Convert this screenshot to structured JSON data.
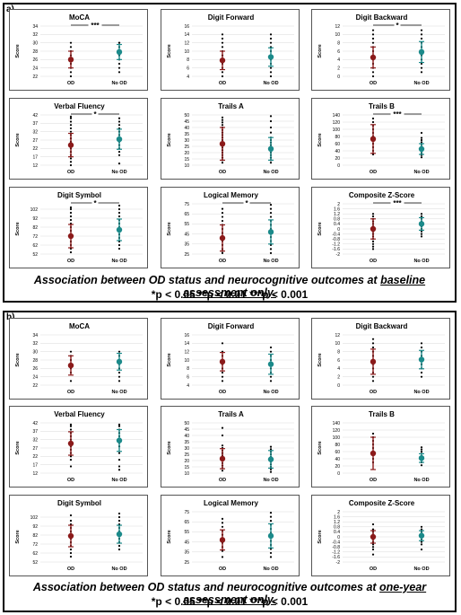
{
  "colors": {
    "od": "#8B1A1A",
    "no_od": "#1B8A8A",
    "dots": "#000000",
    "grid": "#d9d9d9"
  },
  "figure": {
    "sig_legend": "*p < 0.05    **p < 0.01    ***p < 0.001",
    "sections": [
      {
        "label": "a)",
        "caption_prefix": "Association between OD status and neurocognitive outcomes at ",
        "caption_underlined": "baseline assessment only.",
        "sig_text": "*p < 0.05    **p < 0.01    ***p < 0.001"
      },
      {
        "label": "b)",
        "caption_prefix": "Association between OD status and neurocognitive outcomes at ",
        "caption_underlined": "one-year assessment only.",
        "sig_text": "*p < 0.05    **p < 0.01    ***p < 0.001"
      }
    ]
  },
  "chart_data": [
    {
      "type": "scatter",
      "section": "a",
      "title": "MoCA",
      "ylabel": "Score",
      "categories": [
        "OD",
        "No OD"
      ],
      "yticks": [
        22,
        24,
        26,
        28,
        30,
        32,
        34
      ],
      "ylim": [
        22,
        34
      ],
      "sig": "***",
      "series": [
        {
          "mean": 26.0,
          "sd": 2.0,
          "points": [
            22,
            23,
            24,
            25,
            26,
            26,
            27,
            28,
            29,
            30
          ]
        },
        {
          "mean": 27.8,
          "sd": 1.8,
          "points": [
            23,
            24,
            25,
            26,
            27,
            28,
            28,
            29,
            30,
            30
          ]
        }
      ]
    },
    {
      "type": "scatter",
      "section": "a",
      "title": "Digit Forward",
      "ylabel": "Score",
      "categories": [
        "OD",
        "No OD"
      ],
      "yticks": [
        4,
        6,
        8,
        10,
        12,
        14,
        16
      ],
      "ylim": [
        4,
        16
      ],
      "sig": "",
      "series": [
        {
          "mean": 7.8,
          "sd": 2.2,
          "points": [
            4,
            5,
            6,
            7,
            8,
            9,
            10,
            11,
            12,
            13,
            14
          ]
        },
        {
          "mean": 8.6,
          "sd": 2.2,
          "points": [
            4,
            5,
            6,
            7,
            8,
            9,
            10,
            11,
            12,
            13,
            14
          ]
        }
      ]
    },
    {
      "type": "scatter",
      "section": "a",
      "title": "Digit Backward",
      "ylabel": "Score",
      "categories": [
        "OD",
        "No OD"
      ],
      "yticks": [
        0,
        2,
        4,
        6,
        8,
        10,
        12
      ],
      "ylim": [
        0,
        12
      ],
      "sig": "*",
      "series": [
        {
          "mean": 4.5,
          "sd": 2.5,
          "points": [
            0,
            1,
            2,
            3,
            4,
            5,
            6,
            7,
            8,
            9,
            10,
            11
          ]
        },
        {
          "mean": 5.8,
          "sd": 2.5,
          "points": [
            1,
            2,
            3,
            4,
            5,
            6,
            7,
            8,
            9,
            10,
            11
          ]
        }
      ]
    },
    {
      "type": "scatter",
      "section": "a",
      "title": "Verbal Fluency",
      "ylabel": "Score",
      "categories": [
        "OD",
        "No OD"
      ],
      "yticks": [
        12,
        17,
        22,
        27,
        32,
        37,
        42
      ],
      "ylim": [
        12,
        42
      ],
      "sig": "*",
      "series": [
        {
          "mean": 24.0,
          "sd": 7.0,
          "points": [
            12,
            14,
            16,
            18,
            20,
            22,
            24,
            26,
            28,
            30,
            32,
            34,
            36,
            38,
            40,
            41
          ]
        },
        {
          "mean": 27.5,
          "sd": 6.0,
          "points": [
            13,
            18,
            20,
            22,
            24,
            26,
            28,
            30,
            32,
            34,
            36,
            38,
            40
          ]
        }
      ]
    },
    {
      "type": "scatter",
      "section": "a",
      "title": "Trails A",
      "ylabel": "Score",
      "categories": [
        "OD",
        "No OD"
      ],
      "yticks": [
        10,
        15,
        20,
        25,
        30,
        35,
        40,
        45,
        50
      ],
      "ylim": [
        10,
        50
      ],
      "sig": "",
      "series": [
        {
          "mean": 27.0,
          "sd": 13.0,
          "points": [
            12,
            14,
            16,
            18,
            20,
            22,
            24,
            26,
            28,
            30,
            32,
            34,
            36,
            38,
            40,
            42,
            44,
            46,
            48
          ]
        },
        {
          "mean": 23.0,
          "sd": 9.0,
          "points": [
            12,
            14,
            16,
            18,
            20,
            22,
            24,
            26,
            28,
            30,
            32,
            36,
            40,
            45,
            49
          ]
        }
      ]
    },
    {
      "type": "scatter",
      "section": "a",
      "title": "Trails B",
      "ylabel": "Score",
      "categories": [
        "OD",
        "No OD"
      ],
      "yticks": [
        0,
        20,
        40,
        60,
        80,
        100,
        120,
        140
      ],
      "ylim": [
        0,
        140
      ],
      "sig": "***",
      "series": [
        {
          "mean": 73.0,
          "sd": 40.0,
          "points": [
            30,
            40,
            50,
            60,
            70,
            80,
            90,
            100,
            110,
            120,
            130
          ]
        },
        {
          "mean": 45.0,
          "sd": 15.0,
          "points": [
            22,
            28,
            34,
            40,
            46,
            52,
            58,
            64,
            70,
            76,
            90
          ]
        }
      ]
    },
    {
      "type": "scatter",
      "section": "a",
      "title": "Digit Symbol",
      "ylabel": "Score",
      "categories": [
        "OD",
        "No OD"
      ],
      "yticks": [
        52,
        62,
        72,
        82,
        92,
        102
      ],
      "ylim": [
        52,
        108
      ],
      "sig": "*",
      "series": [
        {
          "mean": 72.0,
          "sd": 13.0,
          "points": [
            54,
            58,
            62,
            66,
            70,
            74,
            78,
            82,
            86,
            90,
            94,
            98,
            102,
            104
          ]
        },
        {
          "mean": 79.0,
          "sd": 12.0,
          "points": [
            58,
            62,
            66,
            70,
            74,
            78,
            82,
            86,
            90,
            94,
            98,
            102,
            106
          ]
        }
      ]
    },
    {
      "type": "scatter",
      "section": "a",
      "title": "Logical Memory",
      "ylabel": "Score",
      "categories": [
        "OD",
        "No OD"
      ],
      "yticks": [
        25,
        35,
        45,
        55,
        65,
        75
      ],
      "ylim": [
        25,
        75
      ],
      "sig": "*",
      "series": [
        {
          "mean": 41.0,
          "sd": 13.0,
          "points": [
            26,
            28,
            30,
            34,
            38,
            42,
            46,
            50,
            54,
            58,
            62,
            66,
            70
          ]
        },
        {
          "mean": 47.0,
          "sd": 12.0,
          "points": [
            26,
            30,
            34,
            38,
            42,
            46,
            50,
            54,
            58,
            62,
            66,
            70,
            74
          ]
        }
      ]
    },
    {
      "type": "scatter",
      "section": "a",
      "title": "Composite Z-Score",
      "ylabel": "Score",
      "categories": [
        "OD",
        "No OD"
      ],
      "yticks": [
        -2,
        -1.6,
        -1.2,
        -0.8,
        -0.4,
        0,
        0.4,
        0.8,
        1.2,
        1.6,
        2
      ],
      "ylim": [
        -2,
        2
      ],
      "sig": "***",
      "series": [
        {
          "mean": 0.0,
          "sd": 0.8,
          "points": [
            -1.6,
            -1.4,
            -1.2,
            -1,
            -0.8,
            -0.6,
            -0.4,
            -0.2,
            0,
            0.2,
            0.4,
            0.6,
            0.8,
            1,
            1.2
          ]
        },
        {
          "mean": 0.4,
          "sd": 0.5,
          "points": [
            -0.6,
            -0.4,
            -0.2,
            0,
            0.2,
            0.4,
            0.6,
            0.8,
            1,
            1.2
          ]
        }
      ]
    },
    {
      "type": "scatter",
      "section": "b",
      "title": "MoCA",
      "ylabel": "Score",
      "categories": [
        "OD",
        "No OD"
      ],
      "yticks": [
        22,
        24,
        26,
        28,
        30,
        32,
        34
      ],
      "ylim": [
        22,
        34
      ],
      "sig": "",
      "series": [
        {
          "mean": 26.7,
          "sd": 2.3,
          "points": [
            23,
            25,
            26,
            27,
            28,
            29,
            30
          ]
        },
        {
          "mean": 27.6,
          "sd": 2.0,
          "points": [
            23,
            24,
            25,
            26,
            27,
            28,
            29,
            30
          ]
        }
      ]
    },
    {
      "type": "scatter",
      "section": "b",
      "title": "Digit Forward",
      "ylabel": "Score",
      "categories": [
        "OD",
        "No OD"
      ],
      "yticks": [
        4,
        6,
        8,
        10,
        12,
        14,
        16
      ],
      "ylim": [
        4,
        16
      ],
      "sig": "",
      "series": [
        {
          "mean": 9.6,
          "sd": 2.2,
          "points": [
            5,
            6,
            7,
            8,
            9,
            10,
            11,
            12,
            14
          ]
        },
        {
          "mean": 9.0,
          "sd": 2.4,
          "points": [
            5,
            6,
            7,
            8,
            9,
            10,
            11,
            12,
            13
          ]
        }
      ]
    },
    {
      "type": "scatter",
      "section": "b",
      "title": "Digit Backward",
      "ylabel": "Score",
      "categories": [
        "OD",
        "No OD"
      ],
      "yticks": [
        0,
        2,
        4,
        6,
        8,
        10,
        12
      ],
      "ylim": [
        0,
        12
      ],
      "sig": "",
      "series": [
        {
          "mean": 5.6,
          "sd": 3.0,
          "points": [
            1,
            2,
            3,
            4,
            5,
            6,
            7,
            8,
            9,
            10,
            11
          ]
        },
        {
          "mean": 6.1,
          "sd": 2.2,
          "points": [
            2,
            3,
            4,
            5,
            6,
            7,
            8,
            9,
            10
          ]
        }
      ]
    },
    {
      "type": "scatter",
      "section": "b",
      "title": "Verbal Fluency",
      "ylabel": "Score",
      "categories": [
        "OD",
        "No OD"
      ],
      "yticks": [
        12,
        17,
        22,
        27,
        32,
        37,
        42
      ],
      "ylim": [
        12,
        42
      ],
      "sig": "",
      "series": [
        {
          "mean": 29.7,
          "sd": 7.0,
          "points": [
            16,
            20,
            22,
            24,
            26,
            28,
            30,
            32,
            34,
            36,
            38,
            40,
            41
          ]
        },
        {
          "mean": 31.5,
          "sd": 6.5,
          "points": [
            14,
            16,
            20,
            24,
            28,
            30,
            32,
            34,
            36,
            38,
            40,
            41
          ]
        }
      ]
    },
    {
      "type": "scatter",
      "section": "b",
      "title": "Trails A",
      "ylabel": "Score",
      "categories": [
        "OD",
        "No OD"
      ],
      "yticks": [
        10,
        15,
        20,
        25,
        30,
        35,
        40,
        45,
        50
      ],
      "ylim": [
        10,
        50
      ],
      "sig": "",
      "series": [
        {
          "mean": 21.5,
          "sd": 8.0,
          "points": [
            12,
            14,
            16,
            18,
            20,
            22,
            24,
            26,
            28,
            30,
            32,
            40,
            46
          ]
        },
        {
          "mean": 21.0,
          "sd": 7.0,
          "points": [
            11,
            13,
            15,
            17,
            19,
            21,
            23,
            25,
            27,
            29,
            31
          ]
        }
      ]
    },
    {
      "type": "scatter",
      "section": "b",
      "title": "Trails B",
      "ylabel": "Score",
      "categories": [
        "OD",
        "No OD"
      ],
      "yticks": [
        0,
        20,
        40,
        60,
        80,
        100,
        120,
        140
      ],
      "ylim": [
        0,
        140
      ],
      "sig": "",
      "series": [
        {
          "mean": 55.0,
          "sd": 45.0,
          "points": [
            30,
            40,
            50,
            60,
            70,
            80,
            90,
            100,
            110
          ]
        },
        {
          "mean": 42.0,
          "sd": 12.0,
          "points": [
            22,
            30,
            36,
            42,
            48,
            54,
            60,
            66,
            72
          ]
        }
      ]
    },
    {
      "type": "scatter",
      "section": "b",
      "title": "Digit Symbol",
      "ylabel": "Score",
      "categories": [
        "OD",
        "No OD"
      ],
      "yticks": [
        52,
        62,
        72,
        82,
        92,
        102
      ],
      "ylim": [
        52,
        108
      ],
      "sig": "",
      "series": [
        {
          "mean": 81.0,
          "sd": 12.0,
          "points": [
            58,
            62,
            66,
            70,
            74,
            78,
            82,
            86,
            90,
            94,
            98,
            104
          ]
        },
        {
          "mean": 83.0,
          "sd": 10.0,
          "points": [
            66,
            70,
            74,
            78,
            82,
            86,
            90,
            94,
            98,
            102,
            106
          ]
        }
      ]
    },
    {
      "type": "scatter",
      "section": "b",
      "title": "Logical Memory",
      "ylabel": "Score",
      "categories": [
        "OD",
        "No OD"
      ],
      "yticks": [
        25,
        35,
        45,
        55,
        65,
        75
      ],
      "ylim": [
        25,
        75
      ],
      "sig": "",
      "series": [
        {
          "mean": 47.0,
          "sd": 10.0,
          "points": [
            30,
            36,
            40,
            44,
            48,
            52,
            56,
            60,
            64,
            68
          ]
        },
        {
          "mean": 51.0,
          "sd": 12.0,
          "points": [
            30,
            34,
            38,
            42,
            46,
            50,
            54,
            58,
            62,
            66,
            70,
            74
          ]
        }
      ]
    },
    {
      "type": "scatter",
      "section": "b",
      "title": "Composite Z-Score",
      "ylabel": "Score",
      "categories": [
        "OD",
        "No OD"
      ],
      "yticks": [
        -2,
        -1.6,
        -1.2,
        -0.8,
        -0.4,
        0,
        0.4,
        0.8,
        1.2,
        1.6,
        2
      ],
      "ylim": [
        -2,
        2
      ],
      "sig": "",
      "series": [
        {
          "mean": 0.0,
          "sd": 0.5,
          "points": [
            -1.4,
            -1,
            -0.8,
            -0.6,
            -0.4,
            -0.2,
            0,
            0.2,
            0.4,
            0.6,
            1
          ]
        },
        {
          "mean": 0.1,
          "sd": 0.4,
          "points": [
            -1,
            -0.6,
            -0.4,
            -0.2,
            0,
            0.2,
            0.4,
            0.6,
            0.8
          ]
        }
      ]
    }
  ]
}
